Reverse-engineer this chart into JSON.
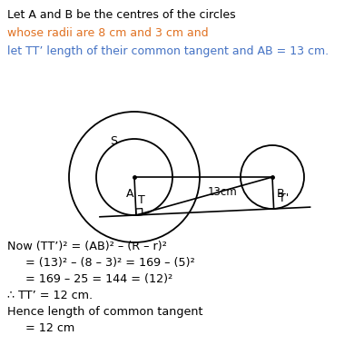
{
  "bg_color": "#ffffff",
  "text_color_black": "#000000",
  "text_color_blue": "#4472c4",
  "text_color_orange": "#e07020",
  "line1": "Let A and B be the centres of the circles",
  "line2": "whose radii are 8 cm and 3 cm and",
  "line3": "let TT’ length of their common tangent and AB = 13 cm.",
  "math_line1": "Now (TT’)² = (AB)² – (R – r)²",
  "math_line2": "= (13)² – (8 – 3)² = 169 – (5)²",
  "math_line3": "= 169 – 25 = 144 = (12)²",
  "math_line4": "∴ TT’ = 12 cm.",
  "math_line5": "Hence length of common tangent",
  "math_line6": "= 12 cm",
  "figwidth": 4.02,
  "figheight": 3.91,
  "dpi": 100
}
